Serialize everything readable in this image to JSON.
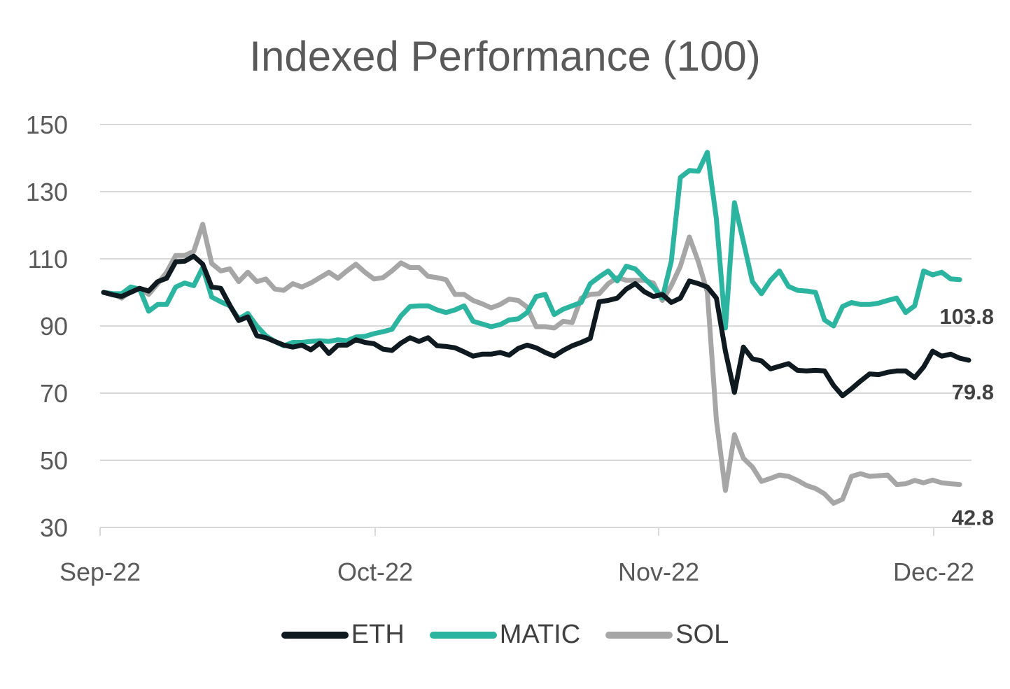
{
  "chart_data": {
    "type": "line",
    "title": "Indexed Performance (100)",
    "xlabel": "",
    "ylabel": "",
    "ylim": [
      30,
      150
    ],
    "yticks": [
      30,
      50,
      70,
      90,
      110,
      130,
      150
    ],
    "xticks": [
      "Sep-22",
      "Oct-22",
      "Nov-22",
      "Dec-22"
    ],
    "grid": true,
    "legend_position": "bottom",
    "series": [
      {
        "name": "ETH",
        "color": "#0f1a20",
        "end_label": "79.8",
        "values": [
          100.0,
          99.3,
          98.8,
          100.0,
          101.2,
          100.4,
          103.2,
          104.2,
          109.1,
          109.3,
          110.8,
          108.4,
          101.6,
          101.2,
          96.2,
          91.6,
          92.7,
          87.1,
          86.5,
          85.4,
          84.3,
          83.7,
          84.3,
          82.9,
          84.9,
          81.8,
          84.3,
          84.3,
          85.9,
          85.1,
          84.7,
          83.1,
          82.7,
          84.9,
          86.5,
          85.4,
          86.5,
          84.1,
          83.9,
          83.5,
          82.3,
          81.0,
          81.6,
          81.6,
          82.1,
          81.3,
          83.3,
          84.3,
          83.5,
          82.1,
          81.0,
          82.7,
          84.1,
          85.1,
          86.3,
          97.2,
          97.6,
          98.3,
          101.0,
          102.6,
          100.2,
          98.8,
          99.4,
          97.0,
          98.3,
          103.4,
          102.6,
          101.6,
          98.3,
          82.5,
          70.2,
          83.7,
          80.2,
          79.6,
          77.2,
          78.0,
          78.8,
          76.8,
          76.6,
          76.8,
          76.6,
          72.3,
          69.2,
          71.3,
          73.6,
          75.7,
          75.5,
          76.2,
          76.6,
          76.6,
          74.6,
          77.8,
          82.5,
          81.0,
          81.6,
          80.4,
          79.8
        ]
      },
      {
        "name": "MATIC",
        "color": "#2bb5a0",
        "end_label": "103.8",
        "values": [
          100.0,
          99.6,
          99.6,
          101.6,
          101.0,
          94.4,
          96.4,
          96.4,
          101.6,
          102.8,
          102.0,
          107.4,
          98.6,
          97.2,
          96.0,
          92.1,
          93.7,
          90.0,
          87.1,
          85.4,
          84.1,
          85.1,
          85.1,
          85.4,
          85.6,
          85.4,
          85.9,
          85.6,
          86.7,
          86.9,
          87.7,
          88.3,
          89.0,
          93.0,
          95.8,
          96.0,
          96.0,
          94.8,
          94.0,
          94.8,
          96.0,
          91.4,
          90.6,
          89.8,
          90.4,
          91.8,
          92.1,
          94.0,
          98.8,
          99.4,
          93.4,
          95.0,
          96.0,
          97.0,
          102.6,
          104.6,
          106.4,
          103.4,
          107.8,
          107.0,
          104.2,
          101.6,
          98.3,
          109.3,
          134.2,
          136.3,
          136.1,
          141.7,
          121.9,
          89.4,
          126.7,
          115.1,
          103.2,
          99.6,
          103.6,
          106.4,
          101.8,
          100.6,
          100.4,
          100.0,
          91.8,
          90.0,
          95.8,
          97.0,
          96.4,
          96.4,
          96.8,
          97.6,
          98.3,
          94.0,
          96.0,
          106.4,
          105.2,
          106.0,
          104.0,
          103.8
        ]
      },
      {
        "name": "SOL",
        "color": "#a6a6a6",
        "end_label": "42.8",
        "values": [
          100.0,
          99.6,
          98.3,
          100.4,
          101.2,
          99.4,
          102.6,
          106.0,
          111.0,
          111.0,
          112.2,
          120.3,
          108.6,
          106.4,
          107.0,
          103.2,
          106.0,
          103.2,
          104.0,
          101.0,
          100.6,
          102.6,
          101.6,
          102.8,
          104.4,
          106.0,
          104.2,
          106.4,
          108.4,
          106.0,
          104.0,
          104.4,
          106.4,
          108.8,
          107.4,
          107.4,
          104.8,
          104.4,
          103.8,
          99.4,
          99.4,
          97.6,
          96.6,
          95.4,
          96.4,
          98.0,
          97.6,
          95.6,
          89.8,
          89.8,
          89.4,
          91.4,
          91.0,
          98.3,
          99.4,
          99.6,
          102.6,
          104.4,
          103.6,
          103.6,
          103.6,
          102.8,
          97.6,
          102.0,
          107.8,
          116.5,
          109.1,
          100.0,
          62.0,
          41.0,
          57.6,
          50.6,
          48.0,
          43.7,
          44.6,
          45.6,
          45.2,
          44.0,
          42.5,
          41.6,
          40.0,
          37.2,
          38.4,
          45.2,
          46.0,
          45.2,
          45.4,
          45.6,
          42.8,
          43.0,
          44.0,
          43.3,
          44.1,
          43.3,
          43.0,
          42.8
        ]
      }
    ]
  }
}
